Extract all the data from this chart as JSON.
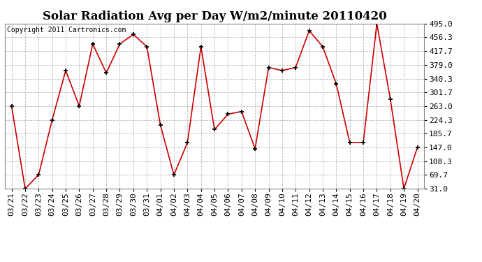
{
  "title": "Solar Radiation Avg per Day W/m2/minute 20110420",
  "copyright": "Copyright 2011 Cartronics.com",
  "labels": [
    "03/21",
    "03/22",
    "03/23",
    "03/24",
    "03/25",
    "03/26",
    "03/27",
    "03/28",
    "03/29",
    "03/30",
    "03/31",
    "04/01",
    "04/02",
    "04/03",
    "04/04",
    "04/05",
    "04/06",
    "04/07",
    "04/08",
    "04/09",
    "04/10",
    "04/11",
    "04/12",
    "04/13",
    "04/14",
    "04/15",
    "04/16",
    "04/17",
    "04/18",
    "04/19",
    "04/20"
  ],
  "values": [
    263.0,
    31.0,
    69.7,
    224.3,
    363.0,
    263.0,
    437.7,
    356.3,
    437.7,
    464.3,
    430.3,
    209.7,
    69.7,
    160.3,
    430.3,
    197.0,
    240.3,
    248.0,
    143.0,
    371.7,
    363.0,
    371.7,
    475.0,
    430.3,
    325.7,
    160.3,
    160.3,
    495.0,
    282.3,
    31.0,
    147.0
  ],
  "ylim_min": 31.0,
  "ylim_max": 495.0,
  "yticks": [
    31.0,
    69.7,
    108.3,
    147.0,
    185.7,
    224.3,
    263.0,
    301.7,
    340.3,
    379.0,
    417.7,
    456.3,
    495.0
  ],
  "line_color": "#cc0000",
  "marker": "+",
  "marker_color": "#000000",
  "bg_color": "#ffffff",
  "plot_bg_color": "#ffffff",
  "grid_color": "#bbbbbb",
  "title_fontsize": 12,
  "tick_fontsize": 8,
  "copyright_fontsize": 7
}
